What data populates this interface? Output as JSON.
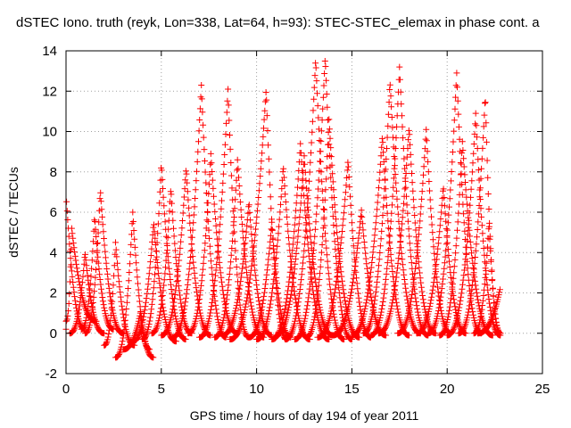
{
  "chart_data": {
    "type": "scatter",
    "title": "dSTEC Iono. truth (reyk, Lon=338, Lat=64, h=93): STEC-STEC_elemax in phase cont. a",
    "xlabel": "GPS time / hours of day 194 of year 2011",
    "ylabel": "dSTEC  / TECUs",
    "xlim": [
      0,
      25
    ],
    "ylim": [
      -2,
      14
    ],
    "x_ticks": [
      0,
      5,
      10,
      15,
      20,
      25
    ],
    "y_ticks": [
      -2,
      0,
      2,
      4,
      6,
      8,
      10,
      12,
      14
    ],
    "x_tick_labels": [
      "0",
      "5",
      "10",
      "15",
      "20",
      "25"
    ],
    "y_tick_labels": [
      "-2",
      "0",
      "2",
      "4",
      "6",
      "8",
      "10",
      "12",
      "14"
    ],
    "grid": true,
    "marker": "+",
    "series": [
      {
        "color": "#ff0000",
        "arcs": [
          {
            "t_min": 0.0,
            "peak": 0.0,
            "t_max": 1.0,
            "base": 0.2,
            "peak_value": 7.0
          },
          {
            "t_min": 0.0,
            "peak": 0.3,
            "t_max": 1.6,
            "base": 0.6,
            "peak_value": 5.2
          },
          {
            "t_min": 0.2,
            "peak": 1.0,
            "t_max": 2.0,
            "base": 0.0,
            "peak_value": 4.0
          },
          {
            "t_min": 1.0,
            "peak": 1.8,
            "t_max": 3.0,
            "base": 0.0,
            "peak_value": 7.1
          },
          {
            "t_min": 0.8,
            "peak": 1.5,
            "t_max": 2.5,
            "base": 0.2,
            "peak_value": 5.8
          },
          {
            "t_min": 2.0,
            "peak": 2.6,
            "t_max": 3.6,
            "base": -0.6,
            "peak_value": 4.5
          },
          {
            "t_min": 2.6,
            "peak": 3.5,
            "t_max": 4.6,
            "base": -1.2,
            "peak_value": 6.0
          },
          {
            "t_min": 3.0,
            "peak": 3.9,
            "t_max": 4.4,
            "base": -0.8,
            "peak_value": 1.0
          },
          {
            "t_min": 3.5,
            "peak": 4.6,
            "t_max": 5.8,
            "base": -0.4,
            "peak_value": 5.5
          },
          {
            "t_min": 4.0,
            "peak": 5.0,
            "t_max": 6.3,
            "base": -0.3,
            "peak_value": 8.4
          },
          {
            "t_min": 4.5,
            "peak": 5.5,
            "t_max": 6.6,
            "base": 0.0,
            "peak_value": 7.2
          },
          {
            "t_min": 5.0,
            "peak": 6.3,
            "t_max": 7.6,
            "base": -0.1,
            "peak_value": 8.2
          },
          {
            "t_min": 5.6,
            "peak": 7.1,
            "t_max": 8.4,
            "base": -0.2,
            "peak_value": 12.3
          },
          {
            "t_min": 6.4,
            "peak": 7.6,
            "t_max": 9.0,
            "base": 0.0,
            "peak_value": 8.9
          },
          {
            "t_min": 7.0,
            "peak": 8.5,
            "t_max": 9.6,
            "base": -0.2,
            "peak_value": 12.1
          },
          {
            "t_min": 7.8,
            "peak": 9.0,
            "t_max": 10.4,
            "base": -0.2,
            "peak_value": 8.6
          },
          {
            "t_min": 8.2,
            "peak": 9.6,
            "t_max": 10.8,
            "base": -0.1,
            "peak_value": 6.5
          },
          {
            "t_min": 8.6,
            "peak": 10.5,
            "t_max": 11.6,
            "base": -0.3,
            "peak_value": 12.1
          },
          {
            "t_min": 9.6,
            "peak": 10.8,
            "t_max": 11.8,
            "base": -0.2,
            "peak_value": 5.5
          },
          {
            "t_min": 10.0,
            "peak": 11.4,
            "t_max": 12.8,
            "base": -0.3,
            "peak_value": 8.3
          },
          {
            "t_min": 10.8,
            "peak": 12.3,
            "t_max": 13.8,
            "base": -0.3,
            "peak_value": 9.4
          },
          {
            "t_min": 11.0,
            "peak": 12.5,
            "t_max": 14.0,
            "base": -0.1,
            "peak_value": 8.8
          },
          {
            "t_min": 11.5,
            "peak": 13.1,
            "t_max": 14.6,
            "base": -0.3,
            "peak_value": 13.6
          },
          {
            "t_min": 12.0,
            "peak": 13.6,
            "t_max": 15.0,
            "base": -0.3,
            "peak_value": 13.7
          },
          {
            "t_min": 12.6,
            "peak": 13.8,
            "t_max": 15.4,
            "base": -0.2,
            "peak_value": 10.6
          },
          {
            "t_min": 13.2,
            "peak": 14.8,
            "t_max": 16.0,
            "base": -0.2,
            "peak_value": 8.6
          },
          {
            "t_min": 14.0,
            "peak": 15.5,
            "t_max": 16.8,
            "base": -0.1,
            "peak_value": 6.1
          },
          {
            "t_min": 15.0,
            "peak": 16.6,
            "t_max": 18.0,
            "base": -0.1,
            "peak_value": 9.8
          },
          {
            "t_min": 15.6,
            "peak": 17.0,
            "t_max": 18.6,
            "base": 0.0,
            "peak_value": 12.5
          },
          {
            "t_min": 16.0,
            "peak": 17.5,
            "t_max": 19.0,
            "base": -0.1,
            "peak_value": 13.2
          },
          {
            "t_min": 16.4,
            "peak": 18.0,
            "t_max": 19.4,
            "base": 0.0,
            "peak_value": 10.2
          },
          {
            "t_min": 17.4,
            "peak": 18.9,
            "t_max": 20.2,
            "base": 0.0,
            "peak_value": 10.1
          },
          {
            "t_min": 18.4,
            "peak": 19.8,
            "t_max": 21.0,
            "base": 0.0,
            "peak_value": 7.3
          },
          {
            "t_min": 19.0,
            "peak": 20.5,
            "t_max": 21.8,
            "base": 0.0,
            "peak_value": 12.9
          },
          {
            "t_min": 19.6,
            "peak": 20.8,
            "t_max": 22.4,
            "base": -0.1,
            "peak_value": 9.5
          },
          {
            "t_min": 20.0,
            "peak": 21.5,
            "t_max": 22.8,
            "base": -0.1,
            "peak_value": 10.9
          },
          {
            "t_min": 20.6,
            "peak": 22.0,
            "t_max": 22.8,
            "base": 0.0,
            "peak_value": 11.8
          },
          {
            "t_min": 21.4,
            "peak": 22.2,
            "t_max": 22.8,
            "base": 0.0,
            "peak_value": 5.5
          },
          {
            "t_min": 21.6,
            "peak": 22.8,
            "t_max": 22.8,
            "base": 0.0,
            "peak_value": 2.3
          }
        ]
      }
    ]
  }
}
